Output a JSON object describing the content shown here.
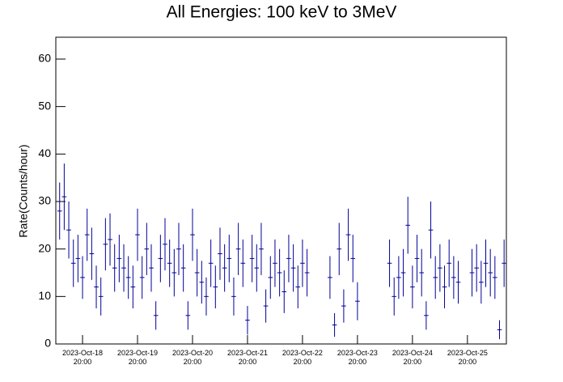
{
  "chart_data": {
    "type": "errorbar",
    "title": "All Energies:  100 keV to 3MeV",
    "y_label": "Rate(Counts/hour)",
    "color": "#000099",
    "ylim": [
      0,
      64.6
    ],
    "yticks": [
      0,
      10,
      20,
      30,
      40,
      50,
      60
    ],
    "xlim": [
      "2023-10-18 08:20",
      "2023-10-26 13:00"
    ],
    "xticks": [
      {
        "value": "2023-10-18 20:00",
        "label": "2023-Oct-18 20:00"
      },
      {
        "value": "2023-10-19 20:00",
        "label": "2023-Oct-19 20:00"
      },
      {
        "value": "2023-10-20 20:00",
        "label": "2023-Oct-20 20:00"
      },
      {
        "value": "2023-10-21 20:00",
        "label": "2023-Oct-21 20:00"
      },
      {
        "value": "2023-10-22 20:00",
        "label": "2023-Oct-22 20:00"
      },
      {
        "value": "2023-10-23 20:00",
        "label": "2023-Oct-23 20:00"
      },
      {
        "value": "2023-10-24 20:00",
        "label": "2023-Oct-24 20:00"
      },
      {
        "value": "2023-10-25 20:00",
        "label": "2023-Oct-25 20:00"
      }
    ],
    "x": [
      "2023-10-18 10:00",
      "2023-10-18 12:00",
      "2023-10-18 14:00",
      "2023-10-18 16:00",
      "2023-10-18 18:00",
      "2023-10-18 20:00",
      "2023-10-18 22:00",
      "2023-10-19 00:00",
      "2023-10-19 02:00",
      "2023-10-19 04:00",
      "2023-10-19 06:00",
      "2023-10-19 08:00",
      "2023-10-19 10:00",
      "2023-10-19 12:00",
      "2023-10-19 14:00",
      "2023-10-19 16:00",
      "2023-10-19 18:00",
      "2023-10-19 20:00",
      "2023-10-19 22:00",
      "2023-10-20 00:00",
      "2023-10-20 02:00",
      "2023-10-20 04:00",
      "2023-10-20 06:00",
      "2023-10-20 08:00",
      "2023-10-20 10:00",
      "2023-10-20 12:00",
      "2023-10-20 14:00",
      "2023-10-20 16:00",
      "2023-10-20 18:00",
      "2023-10-20 20:00",
      "2023-10-20 22:00",
      "2023-10-21 00:00",
      "2023-10-21 02:00",
      "2023-10-21 04:00",
      "2023-10-21 06:00",
      "2023-10-21 08:00",
      "2023-10-21 10:00",
      "2023-10-21 12:00",
      "2023-10-21 14:00",
      "2023-10-21 16:00",
      "2023-10-21 18:00",
      "2023-10-21 20:00",
      "2023-10-21 22:00",
      "2023-10-22 00:00",
      "2023-10-22 02:00",
      "2023-10-22 04:00",
      "2023-10-22 06:00",
      "2023-10-22 08:00",
      "2023-10-22 10:00",
      "2023-10-22 12:00",
      "2023-10-22 14:00",
      "2023-10-22 16:00",
      "2023-10-22 18:00",
      "2023-10-22 20:00",
      "2023-10-22 22:00",
      "2023-10-23 08:00",
      "2023-10-23 10:00",
      "2023-10-23 12:00",
      "2023-10-23 14:00",
      "2023-10-23 16:00",
      "2023-10-23 18:00",
      "2023-10-23 20:00",
      "2023-10-24 10:00",
      "2023-10-24 12:00",
      "2023-10-24 14:00",
      "2023-10-24 16:00",
      "2023-10-24 18:00",
      "2023-10-24 20:00",
      "2023-10-24 22:00",
      "2023-10-25 00:00",
      "2023-10-25 02:00",
      "2023-10-25 04:00",
      "2023-10-25 06:00",
      "2023-10-25 08:00",
      "2023-10-25 10:00",
      "2023-10-25 12:00",
      "2023-10-25 14:00",
      "2023-10-25 16:00",
      "2023-10-25 22:00",
      "2023-10-26 00:00",
      "2023-10-26 02:00",
      "2023-10-26 04:00",
      "2023-10-26 06:00",
      "2023-10-26 08:00",
      "2023-10-26 10:00",
      "2023-10-26 12:00"
    ],
    "values": [
      28,
      31,
      24,
      17,
      18,
      14,
      23,
      19,
      12,
      10,
      21,
      22,
      16,
      18,
      16,
      14,
      12,
      23,
      14,
      20,
      16,
      6,
      18,
      21,
      17,
      15,
      20,
      16,
      6,
      23,
      15,
      13,
      10,
      17,
      12,
      19,
      16,
      18,
      10,
      20,
      17,
      5,
      18,
      16,
      20,
      8,
      14,
      17,
      15,
      11,
      18,
      16,
      12,
      17,
      15,
      14,
      4,
      20,
      8,
      23,
      18,
      9,
      17,
      10,
      14,
      15,
      25,
      12,
      18,
      15,
      6,
      24,
      14,
      16,
      12,
      17,
      14,
      13,
      15,
      16,
      13,
      17,
      15,
      14,
      3,
      17
    ],
    "errors": [
      6,
      7,
      6,
      5,
      5,
      4.5,
      5.5,
      5.5,
      4.5,
      4,
      5.5,
      5.5,
      5,
      5,
      5,
      4.5,
      4.5,
      5.5,
      4.5,
      5.5,
      5,
      3,
      5,
      5.5,
      5,
      5,
      5.5,
      5,
      3,
      5.5,
      5,
      4.5,
      4,
      5,
      4.5,
      5.5,
      5,
      5,
      4,
      5.5,
      5,
      3,
      5,
      5,
      5.5,
      3.5,
      4.5,
      5,
      5,
      4.5,
      5,
      5,
      4.5,
      5,
      5,
      4.5,
      2.5,
      5.5,
      3.5,
      5.5,
      5,
      4,
      5,
      4,
      4.5,
      5,
      6,
      4.5,
      5,
      5,
      3,
      6,
      4.5,
      5,
      4.5,
      5,
      4.5,
      4.5,
      5,
      5,
      4.5,
      5,
      5,
      4.5,
      2,
      5
    ]
  }
}
